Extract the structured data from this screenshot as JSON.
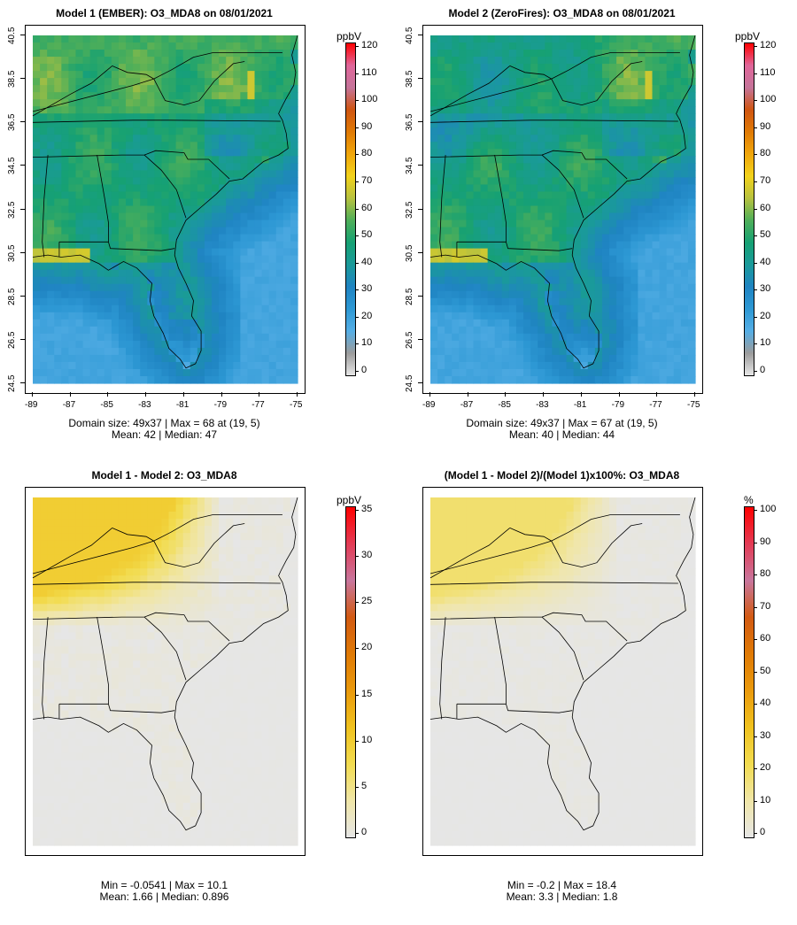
{
  "panels": [
    {
      "id": "p1",
      "title": "Model 1 (EMBER): O3_MDA8 on 08/01/2021",
      "caption_lines": [
        "Domain size: 49x37 | Max = 68 at (19, 5)",
        "Mean: 42 |  Median: 47"
      ],
      "show_axes": true,
      "field": "ember",
      "legend_unit": "ppbV",
      "legend_ticks": [
        "120",
        "110",
        "100",
        "90",
        "80",
        "70",
        "60",
        "50",
        "40",
        "30",
        "20",
        "10",
        "0"
      ],
      "legend_scale": "ppb"
    },
    {
      "id": "p2",
      "title": "Model 2 (ZeroFires): O3_MDA8 on 08/01/2021",
      "caption_lines": [
        "Domain size: 49x37 | Max = 67 at (19, 5)",
        "Mean: 40 |  Median: 44"
      ],
      "show_axes": true,
      "field": "zerofires",
      "legend_unit": "ppbV",
      "legend_ticks": [
        "120",
        "110",
        "100",
        "90",
        "80",
        "70",
        "60",
        "50",
        "40",
        "30",
        "20",
        "10",
        "0"
      ],
      "legend_scale": "ppb"
    },
    {
      "id": "p3",
      "title": "Model 1 - Model 2: O3_MDA8",
      "caption_lines": [
        "Min = -0.0541 | Max = 10.1",
        "Mean: 1.66 |  Median: 0.896"
      ],
      "show_axes": false,
      "field": "diff",
      "legend_unit": "ppbV",
      "legend_ticks": [
        "35",
        "30",
        "25",
        "20",
        "15",
        "10",
        "5",
        "0"
      ],
      "legend_scale": "diff"
    },
    {
      "id": "p4",
      "title": "(Model 1 - Model 2)/(Model 1)x100%: O3_MDA8",
      "caption_lines": [
        "Min = -0.2 | Max = 18.4",
        "Mean: 3.3 |  Median: 1.8"
      ],
      "show_axes": false,
      "field": "pct",
      "legend_unit": "%",
      "legend_ticks": [
        "100",
        "90",
        "80",
        "70",
        "60",
        "50",
        "40",
        "30",
        "20",
        "10",
        "0"
      ],
      "legend_scale": "pct"
    }
  ],
  "axes": {
    "x_ticks": [
      "-89",
      "-87",
      "-85",
      "-83",
      "-81",
      "-79",
      "-77",
      "-75"
    ],
    "y_ticks": [
      "40.5",
      "38.5",
      "36.5",
      "34.5",
      "32.5",
      "30.5",
      "28.5",
      "26.5",
      "24.5"
    ]
  },
  "colors": {
    "ppb_scale": [
      "#e6e6e6",
      "#9c9c9c",
      "#55aee5",
      "#2d98d4",
      "#1f84c2",
      "#1a9a9a",
      "#16a173",
      "#4faf59",
      "#b7c23f",
      "#f2d21b",
      "#f0a60b",
      "#e07a05",
      "#cf5511",
      "#c5749a",
      "#e0669a",
      "#ff0000"
    ],
    "diff_scale": [
      "#e6e6e6",
      "#f0e6a8",
      "#f2dc50",
      "#f0c21e",
      "#ea9a0c",
      "#e07a05",
      "#d25a12",
      "#c8769d",
      "#e33b55",
      "#ff0000"
    ]
  }
}
